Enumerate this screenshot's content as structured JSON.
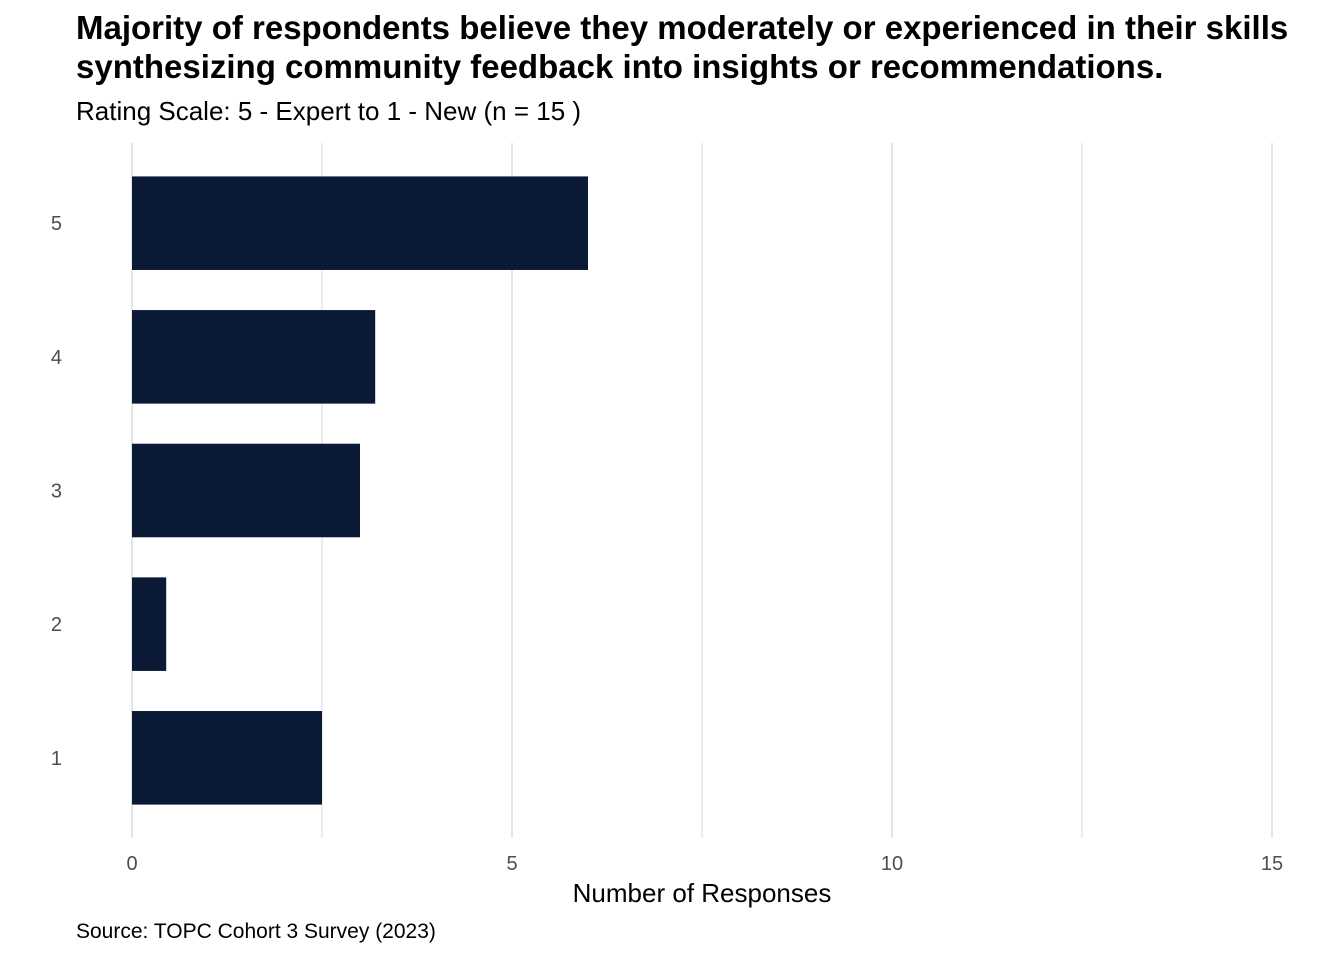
{
  "chart_data": {
    "type": "bar",
    "orientation": "horizontal",
    "title": "Majority of respondents believe they moderately or experienced in their skills synthesizing community feedback into insights or recommendations.",
    "subtitle": "Rating Scale: 5 - Expert to 1 - New (n = 15 )",
    "caption": "Source: TOPC Cohort 3 Survey (2023)",
    "xlabel": "Number of Responses",
    "ylabel": "",
    "categories": [
      "5",
      "4",
      "3",
      "2",
      "1"
    ],
    "values": [
      6.0,
      3.2,
      3.0,
      0.45,
      2.5
    ],
    "xlim": [
      0,
      15
    ],
    "x_ticks": [
      0,
      5,
      10,
      15
    ],
    "x_tick_labels": [
      "0",
      "5",
      "10",
      "15"
    ],
    "grid": true,
    "legend": "none",
    "bar_color": "#0a1a36",
    "grid_color": "#e5e5e5"
  }
}
